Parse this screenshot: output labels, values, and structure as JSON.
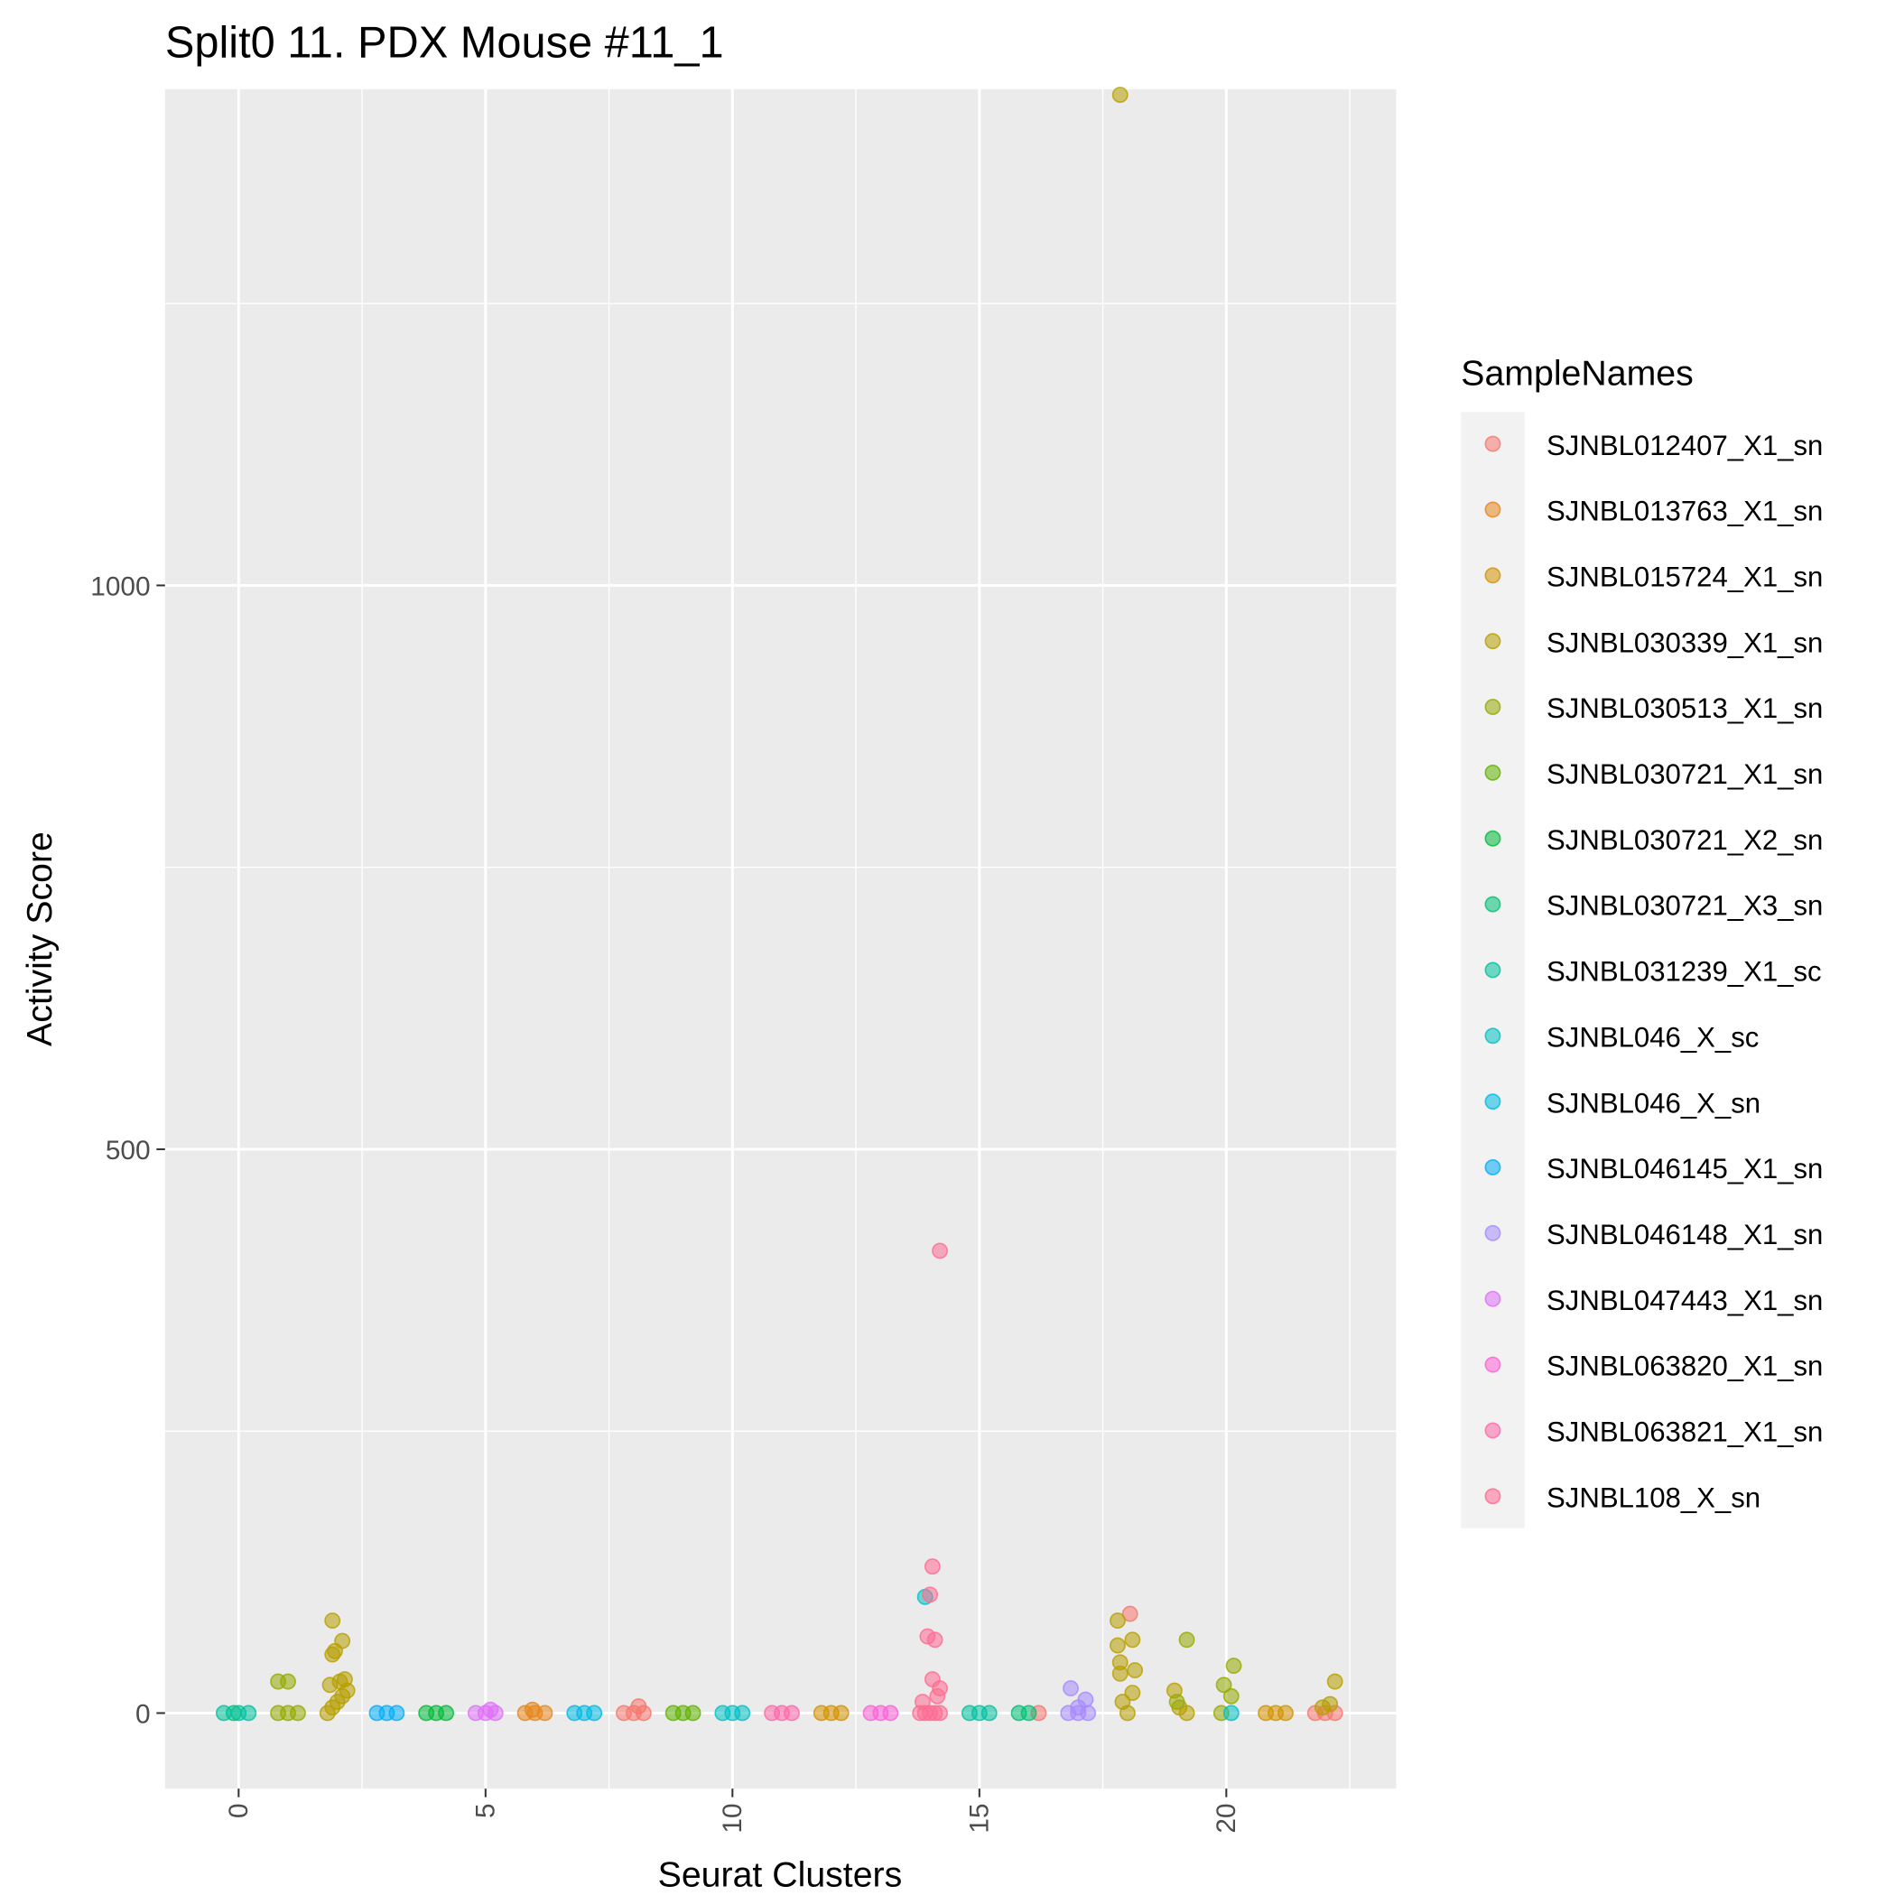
{
  "chart_data": {
    "type": "scatter",
    "title": "Split0 11. PDX Mouse #11_1",
    "x_label": "Seurat Clusters",
    "y_label": "Activity Score",
    "legend_title": "SampleNames",
    "legend_position": "right",
    "xlim": [
      -1.49,
      23.44
    ],
    "ylim": [
      -67,
      1440
    ],
    "xticks": [
      0,
      5,
      10,
      15,
      20
    ],
    "yticks": [
      0,
      500,
      1000
    ],
    "minor_xticks": [
      2.5,
      7.5,
      12.5,
      17.5,
      22.5
    ],
    "minor_yticks": [
      250,
      750,
      1250
    ],
    "grid": true,
    "series": [
      {
        "name": "SJNBL012407_X1_sn",
        "color": "#F8766D",
        "x": [
          7.8,
          8.0,
          8.2,
          8.1,
          16.2,
          21.8,
          22.0,
          22.2,
          18.05
        ],
        "values": [
          0,
          0,
          0,
          6,
          0,
          0,
          0,
          0,
          88
        ]
      },
      {
        "name": "SJNBL013763_X1_sn",
        "color": "#E7861B",
        "x": [
          5.8,
          6.0,
          6.2,
          5.95
        ],
        "values": [
          0,
          0,
          0,
          3
        ]
      },
      {
        "name": "SJNBL015724_X1_sn",
        "color": "#D39200",
        "x": [
          11.8,
          12.0,
          12.2,
          20.8,
          21.0,
          21.2
        ],
        "values": [
          0,
          0,
          0,
          0,
          0,
          0
        ]
      },
      {
        "name": "SJNBL030339_X1_sn",
        "color": "#B79F00",
        "x": [
          1.8,
          1.9,
          2.0,
          2.1,
          2.2,
          1.85,
          1.95,
          1.9,
          2.1,
          2.15,
          1.9,
          2.05,
          17.85,
          17.8,
          17.8,
          17.85,
          17.85,
          18.1,
          18.15,
          18.1,
          18.0,
          17.9,
          18.95,
          19.05,
          19.2,
          21.95,
          22.2,
          22.1
        ],
        "values": [
          0,
          5,
          10,
          15,
          20,
          25,
          55,
          82,
          64,
          30,
          52,
          28,
          1435,
          82,
          60,
          45,
          35,
          65,
          38,
          18,
          0,
          10,
          20,
          5,
          0,
          5,
          28,
          8
        ]
      },
      {
        "name": "SJNBL030513_X1_sn",
        "color": "#93AA00",
        "x": [
          0.8,
          1.0,
          1.2,
          1.0,
          0.8,
          19.2,
          19.0,
          20.15,
          19.95,
          20.1,
          19.9
        ],
        "values": [
          0,
          0,
          0,
          28,
          28,
          65,
          10,
          42,
          25,
          15,
          0
        ]
      },
      {
        "name": "SJNBL030721_X1_sn",
        "color": "#5EB300",
        "x": [
          8.8,
          9.0,
          9.2
        ],
        "values": [
          0,
          0,
          0
        ]
      },
      {
        "name": "SJNBL030721_X2_sn",
        "color": "#00BA38",
        "x": [
          3.8,
          4.0,
          4.2
        ],
        "values": [
          0,
          0,
          0
        ]
      },
      {
        "name": "SJNBL030721_X3_sn",
        "color": "#00BF74",
        "x": [
          15.8,
          16.0,
          -0.1
        ],
        "values": [
          0,
          0,
          0
        ]
      },
      {
        "name": "SJNBL031239_X1_sc",
        "color": "#00C19F",
        "x": [
          -0.3,
          0.0,
          0.2,
          14.8,
          15.0,
          15.2
        ],
        "values": [
          0,
          0,
          0,
          0,
          0,
          0
        ]
      },
      {
        "name": "SJNBL046_X_sc",
        "color": "#00BFC4",
        "x": [
          9.8,
          10.0,
          10.2,
          13.9,
          20.1
        ],
        "values": [
          0,
          0,
          0,
          103,
          0
        ]
      },
      {
        "name": "SJNBL046_X_sn",
        "color": "#00B9E3",
        "x": [
          6.8,
          7.0,
          7.2
        ],
        "values": [
          0,
          0,
          0
        ]
      },
      {
        "name": "SJNBL046145_X1_sn",
        "color": "#00ADFA",
        "x": [
          2.8,
          3.0,
          3.2
        ],
        "values": [
          0,
          0,
          0
        ]
      },
      {
        "name": "SJNBL046148_X1_sn",
        "color": "#A58AFF",
        "x": [
          16.8,
          17.0,
          17.2,
          16.85,
          17.15,
          17.0
        ],
        "values": [
          0,
          0,
          0,
          22,
          12,
          5
        ]
      },
      {
        "name": "SJNBL047443_X1_sn",
        "color": "#DF70F8",
        "x": [
          4.8,
          5.0,
          5.2,
          5.1
        ],
        "values": [
          0,
          0,
          0,
          3
        ]
      },
      {
        "name": "SJNBL063820_X1_sn",
        "color": "#FB61D7",
        "x": [
          12.8,
          13.0,
          13.2
        ],
        "values": [
          0,
          0,
          0
        ]
      },
      {
        "name": "SJNBL063821_X1_sn",
        "color": "#FF66A8",
        "x": [
          10.8,
          11.0,
          11.2
        ],
        "values": [
          0,
          0,
          0
        ]
      },
      {
        "name": "SJNBL108_X_sn",
        "color": "#FF6C91",
        "x": [
          13.8,
          13.9,
          14.0,
          14.1,
          14.2,
          13.85,
          14.15,
          14.2,
          14.05,
          14.1,
          13.95,
          14.0,
          14.05,
          14.2
        ],
        "values": [
          0,
          0,
          0,
          0,
          0,
          10,
          15,
          22,
          30,
          65,
          68,
          105,
          130,
          410
        ]
      }
    ]
  }
}
